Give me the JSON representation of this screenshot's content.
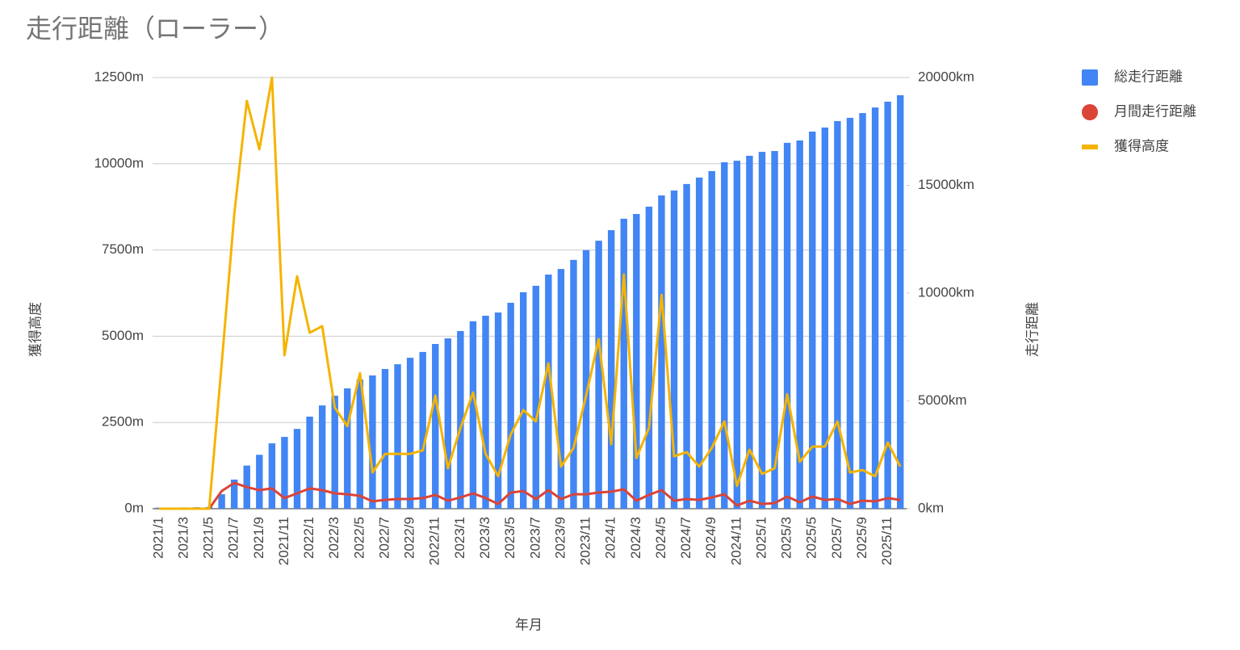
{
  "chart_data": {
    "type": "combo",
    "title": "走行距離（ローラー）",
    "x_label": "年月",
    "y_label": "獲得高度",
    "y2_label": "走行距離",
    "categories": [
      "2021/1",
      null,
      "2021/3",
      null,
      "2021/5",
      null,
      "2021/7",
      null,
      "2021/9",
      null,
      "2021/11",
      null,
      "2022/1",
      null,
      "2022/3",
      null,
      "2022/5",
      null,
      "2022/7",
      null,
      "2022/9",
      null,
      "2022/11",
      null,
      "2023/1",
      null,
      "2023/3",
      null,
      "2023/5",
      null,
      "2023/7",
      null,
      "2023/9",
      null,
      "2023/11",
      null,
      "2024/1",
      null,
      "2024/3",
      null,
      "2024/5",
      null,
      "2024/7",
      null,
      "2024/9",
      null,
      "2024/11",
      null,
      "2025/1",
      null,
      "2025/3",
      null,
      "2025/5",
      null,
      "2025/7",
      null,
      "2025/9",
      null,
      "2025/11",
      null
    ],
    "series": [
      {
        "name": "総走行距離",
        "kind": "bar",
        "axis": "y2",
        "color": "#4285f4",
        "values": [
          50,
          50,
          60,
          70,
          80,
          670,
          1350,
          2000,
          2500,
          3030,
          3330,
          3700,
          4270,
          4790,
          5240,
          5580,
          5990,
          6180,
          6480,
          6700,
          7000,
          7270,
          7640,
          7900,
          8240,
          8690,
          8950,
          9100,
          9550,
          10040,
          10340,
          10860,
          11120,
          11540,
          11990,
          12430,
          12920,
          13450,
          13670,
          14010,
          14530,
          14760,
          15060,
          15360,
          15660,
          16070,
          16140,
          16370,
          16550,
          16590,
          16970,
          17080,
          17490,
          17680,
          17980,
          18130,
          18350,
          18610,
          18880,
          19180
        ]
      },
      {
        "name": "月間走行距離",
        "kind": "line",
        "axis": "y2",
        "color": "#db4437",
        "values": [
          0,
          0,
          0,
          0,
          0,
          820,
          1200,
          1000,
          860,
          940,
          490,
          710,
          940,
          860,
          710,
          670,
          600,
          340,
          410,
          450,
          450,
          490,
          640,
          370,
          520,
          710,
          490,
          220,
          750,
          820,
          450,
          860,
          450,
          670,
          670,
          750,
          790,
          900,
          370,
          640,
          860,
          370,
          450,
          410,
          520,
          670,
          150,
          370,
          220,
          260,
          560,
          300,
          560,
          410,
          450,
          220,
          370,
          340,
          490,
          410
        ]
      },
      {
        "name": "獲得高度",
        "kind": "line",
        "axis": "y",
        "color": "#f4b400",
        "values": [
          0,
          0,
          0,
          0,
          0,
          4200,
          8540,
          11820,
          10420,
          12500,
          4450,
          6740,
          5100,
          5290,
          2930,
          2390,
          3930,
          1050,
          1590,
          1590,
          1590,
          1690,
          3280,
          1170,
          2340,
          3370,
          1590,
          940,
          2150,
          2860,
          2530,
          4210,
          1220,
          1760,
          3280,
          4920,
          1870,
          6790,
          1470,
          2340,
          6200,
          1520,
          1640,
          1220,
          1760,
          2530,
          660,
          1710,
          1010,
          1170,
          3320,
          1360,
          1800,
          1800,
          2530,
          1050,
          1120,
          940,
          1920,
          1220
        ]
      }
    ],
    "ylim": [
      0,
      12500
    ],
    "yticks": [
      {
        "value": 0,
        "label": "0m"
      },
      {
        "value": 2500,
        "label": "2500m"
      },
      {
        "value": 5000,
        "label": "5000m"
      },
      {
        "value": 7500,
        "label": "7500m"
      },
      {
        "value": 10000,
        "label": "10000m"
      },
      {
        "value": 12500,
        "label": "12500m"
      }
    ],
    "y2lim": [
      0,
      20000
    ],
    "y2ticks": [
      {
        "value": 0,
        "label": "0km"
      },
      {
        "value": 5000,
        "label": "5000km"
      },
      {
        "value": 10000,
        "label": "10000km"
      },
      {
        "value": 15000,
        "label": "15000km"
      },
      {
        "value": 20000,
        "label": "20000km"
      }
    ],
    "grid": true,
    "legend": "right"
  }
}
